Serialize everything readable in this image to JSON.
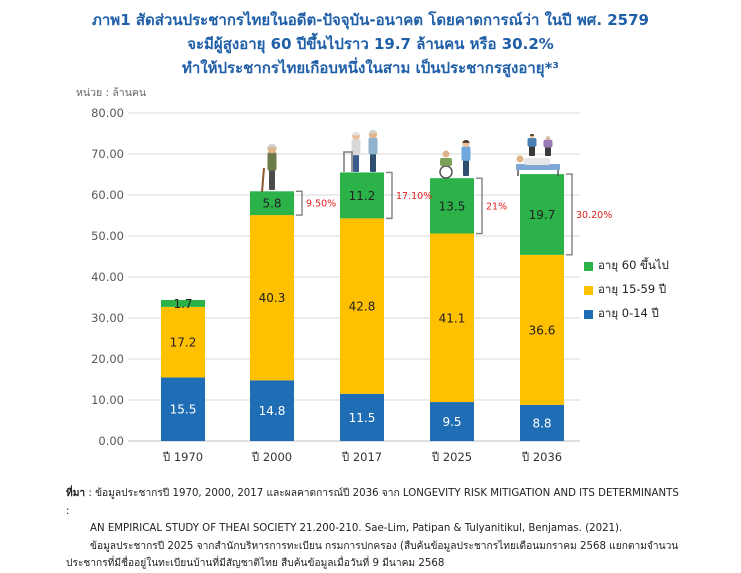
{
  "title": {
    "line1": "ภาพ1 สัดส่วนประชากรไทยในอดีต-ปัจจุบัน-อนาคต โดยคาดการณ์ว่า ในปี พศ. 2579",
    "line2": "จะมีผู้สูงอายุ 60 ปีขึ้นไปราว 19.7 ล้านคน หรือ 30.2%",
    "line3": "ทำให้ประชากรไทยเกือบหนึ่งในสาม เป็นประชากรสูงอายุ*³"
  },
  "unit_label": "หน่วย : ล้านคน",
  "chart_data": {
    "type": "bar",
    "stacked": true,
    "categories": [
      "ปี 1970",
      "ปี 2000",
      "ปี 2017",
      "ปี 2025",
      "ปี 2036"
    ],
    "series": [
      {
        "name": "อายุ 0-14 ปี",
        "values": [
          15.5,
          14.8,
          11.5,
          9.5,
          8.8
        ],
        "color": "#1f6eb5"
      },
      {
        "name": "อายุ 15-59 ปี",
        "values": [
          17.2,
          40.3,
          42.8,
          41.1,
          36.6
        ],
        "color": "#ffc000"
      },
      {
        "name": "อายุ 60 ขึ้นไป",
        "values": [
          1.7,
          5.8,
          11.2,
          13.5,
          19.7
        ],
        "color": "#2bb34a"
      }
    ],
    "data_labels": [
      [
        "15.5",
        "14.8",
        "11.5",
        "9.5",
        "8.8"
      ],
      [
        "17.2",
        "40.3",
        "42.8",
        "41.1",
        "36.6"
      ],
      [
        "1.7",
        "5.8",
        "11.2",
        "13.5",
        "19.7"
      ]
    ],
    "elderly_share_annotations": [
      "",
      "9.50%",
      "17.10%",
      "21%",
      "30.20%"
    ],
    "annotation_color": "#e0201f",
    "ylim": [
      0,
      80
    ],
    "yticks": [
      "0.00",
      "10.00",
      "20.00",
      "30.00",
      "40.00",
      "50.00",
      "60.00",
      "70.00",
      "80.00"
    ],
    "grid": true,
    "legend_position": "right",
    "illustrations": [
      "",
      "elderly-man-with-cane",
      "elderly-couple-with-walker",
      "elderly-in-wheelchair-with-caregiver",
      "elderly-in-hospital-bed"
    ]
  },
  "source": {
    "label": "ที่มา",
    "line1": ": ข้อมูลประชากรปี 1970, 2000, 2017 และผลคาดการณ์ปี 2036 จาก LONGEVITY RISK MITIGATION AND ITS DETERMINANTS :",
    "line2": "AN EMPIRICAL STUDY OF THEAI SOCIETY 21.200-210. Sae-Lim, Patipan & Tulyanitikul, Benjamas. (2021).",
    "line3": "ข้อมูลประชากรปี 2025 จากสำนักบริหารการทะเบียน กรมการปกครอง (สืบค้นข้อมูลประชากรไทยเดือนมกราคม 2568 แยกตามจำนวน",
    "line4": "ประชากรที่มีชื่ออยู่ในทะเบียนบ้านที่มีสัญชาติไทย สืบค้นข้อมูลเมื่อวันที่ 9 มีนาคม 2568"
  }
}
